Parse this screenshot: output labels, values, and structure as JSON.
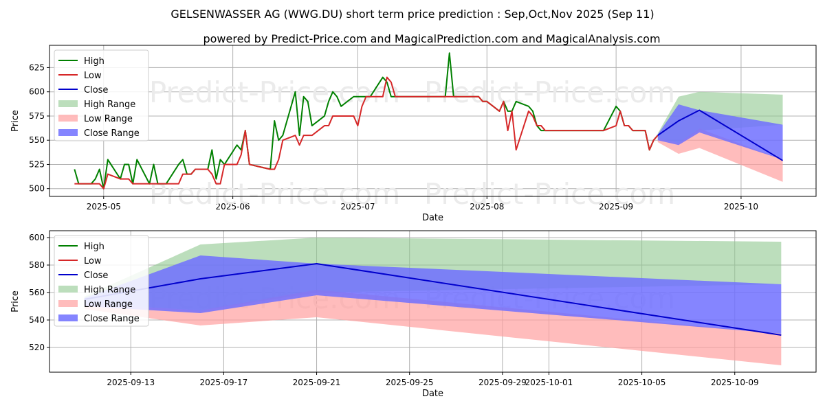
{
  "header": {
    "title": "GELSENWASSER AG (WWG.DU) short term price prediction : Sep,Oct,Nov 2025 (Sep 11)",
    "subtitle": "powered by Predict-Price.com and MagicalPrediction.com and MagicalAnalysis.com"
  },
  "watermark": "Predict-Price.com",
  "colors": {
    "high": "#008000",
    "low": "#d62728",
    "close": "#0000cc",
    "high_range": "#90c890",
    "low_range": "#ffa0a0",
    "close_range": "#7070ff"
  },
  "chart_data": [
    {
      "type": "line",
      "xlabel": "Date",
      "ylabel": "Price",
      "x_ticks": [
        "2025-05",
        "2025-06",
        "2025-07",
        "2025-08",
        "2025-09",
        "2025-10"
      ],
      "x_tick_dates": [
        "2025-05-01",
        "2025-06-01",
        "2025-07-01",
        "2025-08-01",
        "2025-09-01",
        "2025-10-01"
      ],
      "y_ticks": [
        500,
        525,
        550,
        575,
        600,
        625
      ],
      "xlim": [
        "2025-04-18",
        "2025-10-19"
      ],
      "ylim": [
        492,
        648
      ],
      "grid": true,
      "legend_position": "top-left",
      "legend": [
        "High",
        "Low",
        "Close",
        "High Range",
        "Low Range",
        "Close Range"
      ],
      "series": [
        {
          "name": "High",
          "x": [
            "2025-04-24",
            "2025-04-25",
            "2025-04-28",
            "2025-04-29",
            "2025-04-30",
            "2025-05-01",
            "2025-05-02",
            "2025-05-05",
            "2025-05-06",
            "2025-05-07",
            "2025-05-08",
            "2025-05-09",
            "2025-05-12",
            "2025-05-13",
            "2025-05-14",
            "2025-05-15",
            "2025-05-16",
            "2025-05-19",
            "2025-05-20",
            "2025-05-21",
            "2025-05-22",
            "2025-05-23",
            "2025-05-26",
            "2025-05-27",
            "2025-05-28",
            "2025-05-29",
            "2025-05-30",
            "2025-06-02",
            "2025-06-03",
            "2025-06-04",
            "2025-06-05",
            "2025-06-10",
            "2025-06-11",
            "2025-06-12",
            "2025-06-13",
            "2025-06-16",
            "2025-06-17",
            "2025-06-18",
            "2025-06-19",
            "2025-06-20",
            "2025-06-23",
            "2025-06-24",
            "2025-06-25",
            "2025-06-26",
            "2025-06-27",
            "2025-06-30",
            "2025-07-01",
            "2025-07-02",
            "2025-07-03",
            "2025-07-04",
            "2025-07-07",
            "2025-07-08",
            "2025-07-09",
            "2025-07-10",
            "2025-07-11",
            "2025-07-14",
            "2025-07-15",
            "2025-07-16",
            "2025-07-17",
            "2025-07-18",
            "2025-07-21",
            "2025-07-22",
            "2025-07-23",
            "2025-07-24",
            "2025-07-25",
            "2025-07-28",
            "2025-07-29",
            "2025-07-30",
            "2025-07-31",
            "2025-08-01",
            "2025-08-04",
            "2025-08-05",
            "2025-08-06",
            "2025-08-07",
            "2025-08-08",
            "2025-08-11",
            "2025-08-12",
            "2025-08-13",
            "2025-08-14",
            "2025-08-15",
            "2025-08-29",
            "2025-09-01",
            "2025-09-02",
            "2025-09-03",
            "2025-09-04",
            "2025-09-05",
            "2025-09-08",
            "2025-09-09",
            "2025-09-10",
            "2025-09-11"
          ],
          "values": [
            520,
            505,
            505,
            510,
            520,
            500,
            530,
            510,
            525,
            525,
            505,
            530,
            505,
            525,
            505,
            505,
            505,
            525,
            530,
            515,
            515,
            520,
            520,
            540,
            510,
            530,
            525,
            545,
            540,
            560,
            525,
            520,
            570,
            550,
            555,
            600,
            555,
            595,
            590,
            565,
            575,
            590,
            600,
            595,
            585,
            595,
            595,
            595,
            595,
            595,
            615,
            610,
            595,
            595,
            595,
            595,
            595,
            595,
            595,
            595,
            595,
            595,
            640,
            595,
            595,
            595,
            595,
            595,
            590,
            590,
            580,
            590,
            580,
            580,
            590,
            585,
            580,
            565,
            560,
            560,
            560,
            585,
            580,
            565,
            565,
            560,
            560,
            540,
            550,
            555
          ]
        },
        {
          "name": "Low",
          "x": [
            "2025-04-24",
            "2025-04-25",
            "2025-04-28",
            "2025-04-29",
            "2025-04-30",
            "2025-05-01",
            "2025-05-02",
            "2025-05-05",
            "2025-05-06",
            "2025-05-07",
            "2025-05-08",
            "2025-05-09",
            "2025-05-12",
            "2025-05-13",
            "2025-05-14",
            "2025-05-15",
            "2025-05-16",
            "2025-05-19",
            "2025-05-20",
            "2025-05-21",
            "2025-05-22",
            "2025-05-23",
            "2025-05-26",
            "2025-05-27",
            "2025-05-28",
            "2025-05-29",
            "2025-05-30",
            "2025-06-02",
            "2025-06-03",
            "2025-06-04",
            "2025-06-05",
            "2025-06-10",
            "2025-06-11",
            "2025-06-12",
            "2025-06-13",
            "2025-06-16",
            "2025-06-17",
            "2025-06-18",
            "2025-06-19",
            "2025-06-20",
            "2025-06-23",
            "2025-06-24",
            "2025-06-25",
            "2025-06-26",
            "2025-06-27",
            "2025-06-30",
            "2025-07-01",
            "2025-07-02",
            "2025-07-03",
            "2025-07-04",
            "2025-07-07",
            "2025-07-08",
            "2025-07-09",
            "2025-07-10",
            "2025-07-11",
            "2025-07-14",
            "2025-07-15",
            "2025-07-16",
            "2025-07-17",
            "2025-07-18",
            "2025-07-21",
            "2025-07-22",
            "2025-07-23",
            "2025-07-24",
            "2025-07-25",
            "2025-07-28",
            "2025-07-29",
            "2025-07-30",
            "2025-07-31",
            "2025-08-01",
            "2025-08-04",
            "2025-08-05",
            "2025-08-06",
            "2025-08-07",
            "2025-08-08",
            "2025-08-11",
            "2025-08-12",
            "2025-08-13",
            "2025-08-14",
            "2025-08-15",
            "2025-08-29",
            "2025-09-01",
            "2025-09-02",
            "2025-09-03",
            "2025-09-04",
            "2025-09-05",
            "2025-09-08",
            "2025-09-09",
            "2025-09-10",
            "2025-09-11"
          ],
          "values": [
            505,
            505,
            505,
            505,
            505,
            500,
            515,
            510,
            510,
            510,
            505,
            505,
            505,
            505,
            505,
            505,
            505,
            505,
            515,
            515,
            515,
            520,
            520,
            515,
            505,
            505,
            525,
            525,
            535,
            560,
            525,
            520,
            520,
            530,
            550,
            555,
            545,
            555,
            555,
            555,
            565,
            565,
            575,
            575,
            575,
            575,
            565,
            585,
            595,
            595,
            595,
            615,
            610,
            595,
            595,
            595,
            595,
            595,
            595,
            595,
            595,
            595,
            595,
            595,
            595,
            595,
            595,
            595,
            590,
            590,
            580,
            590,
            560,
            580,
            540,
            580,
            575,
            565,
            565,
            560,
            560,
            565,
            580,
            565,
            565,
            560,
            560,
            540,
            550,
            555
          ]
        },
        {
          "name": "Close",
          "x": [
            "2025-09-11",
            "2025-09-16",
            "2025-09-21",
            "2025-10-11"
          ],
          "values": [
            555,
            570,
            581,
            529
          ]
        }
      ],
      "ranges": [
        {
          "name": "High Range",
          "x": [
            "2025-09-11",
            "2025-09-16",
            "2025-09-21",
            "2025-10-11"
          ],
          "upper": [
            557,
            595,
            600,
            597
          ],
          "lower": [
            552,
            547,
            560,
            566
          ]
        },
        {
          "name": "Low Range",
          "x": [
            "2025-09-11",
            "2025-09-16",
            "2025-09-21",
            "2025-10-11"
          ],
          "upper": [
            552,
            547,
            562,
            530
          ],
          "lower": [
            548,
            536,
            542,
            507
          ]
        },
        {
          "name": "Close Range",
          "x": [
            "2025-09-11",
            "2025-09-16",
            "2025-09-21",
            "2025-10-11"
          ],
          "upper": [
            556,
            587,
            581,
            566
          ],
          "lower": [
            550,
            545,
            558,
            530
          ]
        }
      ]
    },
    {
      "type": "line",
      "xlabel": "Date",
      "ylabel": "Price",
      "x_ticks": [
        "2025-09-13",
        "2025-09-17",
        "2025-09-21",
        "2025-09-25",
        "2025-09-29",
        "2025-10-01",
        "2025-10-05",
        "2025-10-09"
      ],
      "y_ticks": [
        520,
        540,
        560,
        580,
        600
      ],
      "xlim": [
        "2025-09-09T12:00",
        "2025-10-12T12:00"
      ],
      "ylim": [
        502,
        605
      ],
      "grid": true,
      "legend_position": "top-left",
      "legend": [
        "High",
        "Low",
        "Close",
        "High Range",
        "Low Range",
        "Close Range"
      ],
      "series": [
        {
          "name": "Close",
          "x": [
            "2025-09-11",
            "2025-09-16",
            "2025-09-21",
            "2025-10-11"
          ],
          "values": [
            555,
            570,
            581,
            529
          ]
        }
      ],
      "ranges": [
        {
          "name": "High Range",
          "x": [
            "2025-09-11",
            "2025-09-16",
            "2025-09-21",
            "2025-10-11"
          ],
          "upper": [
            557,
            595,
            600,
            597
          ],
          "lower": [
            552,
            547,
            560,
            566
          ]
        },
        {
          "name": "Low Range",
          "x": [
            "2025-09-11",
            "2025-09-16",
            "2025-09-21",
            "2025-10-11"
          ],
          "upper": [
            552,
            547,
            562,
            530
          ],
          "lower": [
            548,
            536,
            542,
            507
          ]
        },
        {
          "name": "Close Range",
          "x": [
            "2025-09-11",
            "2025-09-16",
            "2025-09-21",
            "2025-10-11"
          ],
          "upper": [
            556,
            587,
            581,
            566
          ],
          "lower": [
            550,
            545,
            558,
            530
          ]
        }
      ]
    }
  ]
}
